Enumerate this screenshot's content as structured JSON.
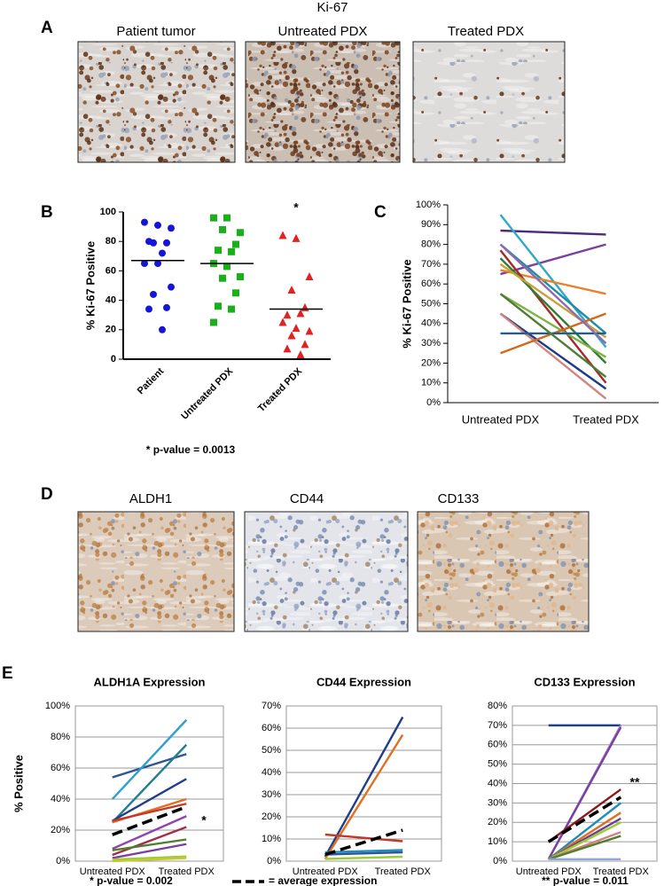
{
  "panel_a": {
    "letter": "A",
    "title": "Ki-67",
    "images": [
      "Patient tumor",
      "Untreated PDX",
      "Treated PDX"
    ]
  },
  "panel_d": {
    "letter": "D",
    "images": [
      "ALDH1",
      "CD44",
      "CD133"
    ]
  },
  "average_legend": "= average expression",
  "chart_data": [
    {
      "panel": "B",
      "type": "strip",
      "ylabel": "% Ki-67 Positive",
      "annotation": "*",
      "footnote": "* p-value = 0.0013",
      "categories": [
        "Patient",
        "Untreated PDX",
        "Treated PDX"
      ],
      "groups": [
        {
          "color": "#1515d6",
          "marker": "circle",
          "values": [
            93,
            91,
            89,
            79,
            79,
            80,
            72,
            65,
            65,
            49,
            44,
            35,
            34,
            20
          ],
          "mean": 67
        },
        {
          "color": "#19b019",
          "marker": "square",
          "values": [
            96,
            96,
            86,
            88,
            78,
            74,
            73,
            65,
            63,
            56,
            55,
            45,
            36,
            34,
            25
          ],
          "mean": 65
        },
        {
          "color": "#e52020",
          "marker": "triangle",
          "values": [
            84,
            82,
            56,
            47,
            35,
            30,
            31,
            25,
            21,
            19,
            16,
            10,
            7,
            3
          ],
          "mean": 34
        }
      ],
      "ylim": [
        0,
        100
      ],
      "yticks": [
        0,
        20,
        40,
        60,
        80,
        100
      ],
      "grid": false
    },
    {
      "panel": "C",
      "type": "line",
      "ylabel": "% Ki-67 Positive",
      "categories": [
        "Untreated PDX",
        "Treated PDX"
      ],
      "ylim": [
        0,
        100
      ],
      "yticks": [
        {
          "value": 0,
          "label": "0%"
        },
        {
          "value": 10,
          "label": "10%"
        },
        {
          "value": 20,
          "label": "20%"
        },
        {
          "value": 30,
          "label": "30%"
        },
        {
          "value": 40,
          "label": "40%"
        },
        {
          "value": 50,
          "label": "50%"
        },
        {
          "value": 60,
          "label": "60%"
        },
        {
          "value": 70,
          "label": "70%"
        },
        {
          "value": 80,
          "label": "80%"
        },
        {
          "value": 90,
          "label": "90%"
        },
        {
          "value": 100,
          "label": "100%"
        }
      ],
      "grid": false,
      "series": [
        {
          "color": "#4b2c7f",
          "values": [
            87,
            85
          ]
        },
        {
          "color": "#7b3f9e",
          "values": [
            65,
            80
          ]
        },
        {
          "color": "#31a9c6",
          "values": [
            95,
            28
          ]
        },
        {
          "color": "#1f8da8",
          "values": [
            80,
            35
          ]
        },
        {
          "color": "#e8822a",
          "values": [
            67,
            55
          ]
        },
        {
          "color": "#a52a2a",
          "values": [
            77,
            10
          ]
        },
        {
          "color": "#2e7d32",
          "values": [
            73,
            20
          ]
        },
        {
          "color": "#7cb342",
          "values": [
            55,
            23
          ]
        },
        {
          "color": "#c6a23d",
          "values": [
            70,
            33
          ]
        },
        {
          "color": "#1b3a8a",
          "values": [
            45,
            7
          ]
        },
        {
          "color": "#d2857e",
          "values": [
            45,
            2
          ]
        },
        {
          "color": "#d2691e",
          "values": [
            25,
            45
          ]
        },
        {
          "color": "#215e8c",
          "values": [
            35,
            35
          ]
        },
        {
          "color": "#8e6bb0",
          "values": [
            80,
            30
          ]
        },
        {
          "color": "#4e7d3a",
          "values": [
            55,
            13
          ]
        }
      ]
    },
    {
      "panel": "E",
      "type": "line",
      "title": "ALDH1A Expression",
      "ylabel": "% Positive",
      "annotation": "*",
      "footnote": "* p-value = 0.002",
      "categories": [
        "Untreated PDX",
        "Treated PDX"
      ],
      "ylim": [
        0,
        100
      ],
      "yticks": [
        {
          "value": 0,
          "label": "0%"
        },
        {
          "value": 20,
          "label": "20%"
        },
        {
          "value": 40,
          "label": "40%"
        },
        {
          "value": 60,
          "label": "60%"
        },
        {
          "value": 80,
          "label": "80%"
        },
        {
          "value": 100,
          "label": "100%"
        }
      ],
      "grid": true,
      "series": [
        {
          "color": "#2f5597",
          "values": [
            54,
            69
          ]
        },
        {
          "color": "#31a0c8",
          "values": [
            40,
            91
          ]
        },
        {
          "color": "#1f8090",
          "values": [
            25,
            75
          ]
        },
        {
          "color": "#1f3f8a",
          "values": [
            26,
            53
          ]
        },
        {
          "color": "#e07020",
          "values": [
            25,
            40
          ]
        },
        {
          "color": "#c0392b",
          "values": [
            26,
            37
          ]
        },
        {
          "color": "#8e44ad",
          "values": [
            8,
            29
          ]
        },
        {
          "color": "#a0304a",
          "values": [
            4,
            22
          ]
        },
        {
          "color": "#4f7f2a",
          "values": [
            7,
            14
          ]
        },
        {
          "color": "#7b3fa0",
          "values": [
            2,
            11
          ]
        },
        {
          "color": "#9acd32",
          "values": [
            1,
            3
          ]
        },
        {
          "color": "#c8c830",
          "values": [
            0,
            2
          ]
        },
        {
          "color": "#000000",
          "dashed": true,
          "values": [
            17,
            35
          ]
        }
      ]
    },
    {
      "type": "line",
      "title": "CD44 Expression",
      "categories": [
        "Untreated PDX",
        "Treated PDX"
      ],
      "ylim": [
        0,
        70
      ],
      "yticks": [
        {
          "value": 0,
          "label": "0%"
        },
        {
          "value": 10,
          "label": "10%"
        },
        {
          "value": 20,
          "label": "20%"
        },
        {
          "value": 30,
          "label": "30%"
        },
        {
          "value": 40,
          "label": "40%"
        },
        {
          "value": 50,
          "label": "50%"
        },
        {
          "value": 60,
          "label": "60%"
        },
        {
          "value": 70,
          "label": "70%"
        }
      ],
      "grid": true,
      "series": [
        {
          "color": "#1f3f8a",
          "values": [
            2,
            65
          ]
        },
        {
          "color": "#e07020",
          "values": [
            1,
            57
          ]
        },
        {
          "color": "#c0392b",
          "values": [
            12,
            9
          ]
        },
        {
          "color": "#1f8dbb",
          "values": [
            4,
            5
          ]
        },
        {
          "color": "#2f5597",
          "values": [
            3,
            4
          ]
        },
        {
          "color": "#9acd32",
          "values": [
            1,
            2
          ]
        },
        {
          "color": "#000000",
          "dashed": true,
          "values": [
            3,
            14
          ]
        }
      ]
    },
    {
      "type": "line",
      "title": "CD133 Expression",
      "annotation": "**",
      "footnote": "** p-value = 0.011",
      "categories": [
        "Untreated PDX",
        "Treated PDX"
      ],
      "ylim": [
        0,
        80
      ],
      "yticks": [
        {
          "value": 0,
          "label": "0%"
        },
        {
          "value": 10,
          "label": "10%"
        },
        {
          "value": 20,
          "label": "20%"
        },
        {
          "value": 30,
          "label": "30%"
        },
        {
          "value": 40,
          "label": "40%"
        },
        {
          "value": 50,
          "label": "50%"
        },
        {
          "value": 60,
          "label": "60%"
        },
        {
          "value": 70,
          "label": "70%"
        },
        {
          "value": 80,
          "label": "80%"
        }
      ],
      "grid": true,
      "series": [
        {
          "color": "#1f3f8a",
          "values": [
            70,
            70
          ]
        },
        {
          "color": "#a08cc8",
          "values": [
            1,
            70
          ]
        },
        {
          "color": "#7b3fa0",
          "values": [
            1,
            69
          ]
        },
        {
          "color": "#8b1a1a",
          "values": [
            10,
            37
          ]
        },
        {
          "color": "#1f8dbb",
          "values": [
            1,
            30
          ]
        },
        {
          "color": "#e07020",
          "values": [
            1,
            25
          ]
        },
        {
          "color": "#6a3d9a",
          "values": [
            1,
            22
          ]
        },
        {
          "color": "#9acd32",
          "values": [
            1,
            20
          ]
        },
        {
          "color": "#d08080",
          "values": [
            1,
            15
          ]
        },
        {
          "color": "#4f7f2a",
          "values": [
            1,
            13
          ]
        },
        {
          "color": "#8fa8d8",
          "values": [
            1,
            1
          ]
        },
        {
          "color": "#000000",
          "dashed": true,
          "values": [
            10,
            33
          ]
        }
      ]
    }
  ]
}
